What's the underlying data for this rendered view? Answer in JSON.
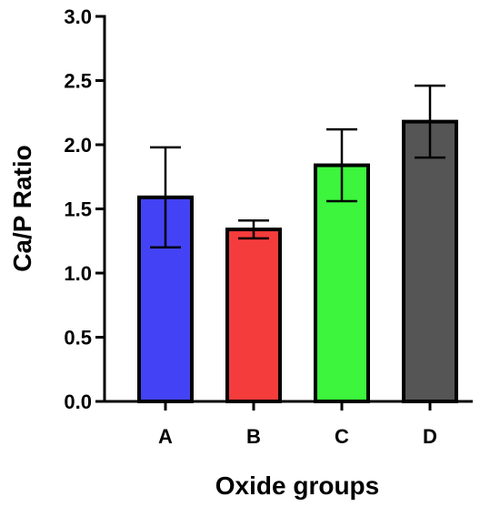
{
  "chart_data": {
    "type": "bar",
    "categories": [
      "A",
      "B",
      "C",
      "D"
    ],
    "values": [
      1.59,
      1.34,
      1.84,
      2.18
    ],
    "error": [
      0.39,
      0.07,
      0.28,
      0.28
    ],
    "colors": [
      "#4343f5",
      "#f53c3c",
      "#3cf53c",
      "#555555"
    ],
    "xlabel": "Oxide groups",
    "ylabel": "Ca/P Ratio",
    "ylim": [
      0,
      3.0
    ],
    "yticks": [
      "0.0",
      "0.5",
      "1.0",
      "1.5",
      "2.0",
      "2.5",
      "3.0"
    ],
    "grid": false,
    "legend": "none"
  }
}
